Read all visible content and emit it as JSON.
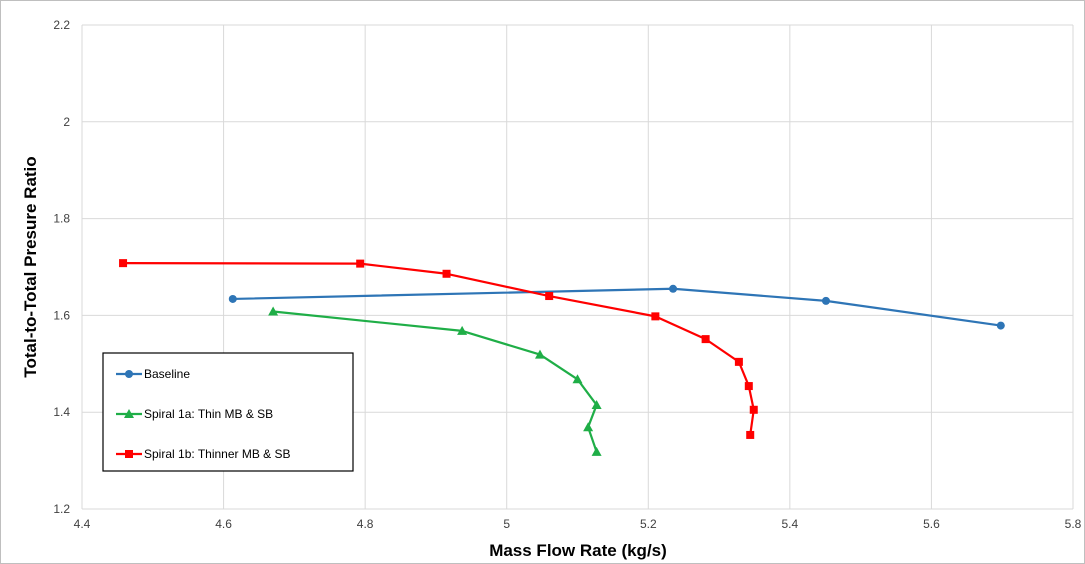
{
  "chart_data": {
    "type": "line",
    "title": "",
    "xlabel": "Mass Flow Rate (kg/s)",
    "ylabel": "Total-to-Total Presure Ratio",
    "xlim": [
      4.4,
      5.8
    ],
    "ylim": [
      1.2,
      2.2
    ],
    "x_ticks": [
      "4.4",
      "4.6",
      "4.8",
      "5",
      "5.2",
      "5.4",
      "5.6",
      "5.8"
    ],
    "y_ticks": [
      "1.2",
      "1.4",
      "1.6",
      "1.8",
      "2",
      "2.2"
    ],
    "grid": true,
    "legend_position": "bottom-left",
    "series": [
      {
        "name": "Baseline",
        "color": "#2e75b6",
        "marker": "circle",
        "points": [
          [
            4.613,
            1.634
          ],
          [
            5.235,
            1.655
          ],
          [
            5.451,
            1.63
          ],
          [
            5.698,
            1.579
          ]
        ]
      },
      {
        "name": "Spiral 1a: Thin MB & SB",
        "color": "#1fae47",
        "marker": "triangle",
        "points": [
          [
            4.67,
            1.608
          ],
          [
            4.937,
            1.568
          ],
          [
            5.047,
            1.519
          ],
          [
            5.1,
            1.468
          ],
          [
            5.127,
            1.415
          ],
          [
            5.115,
            1.369
          ],
          [
            5.127,
            1.318
          ]
        ]
      },
      {
        "name": "Spiral 1b: Thinner MB & SB",
        "color": "#ff0000",
        "marker": "square",
        "points": [
          [
            4.458,
            1.708
          ],
          [
            4.793,
            1.707
          ],
          [
            4.915,
            1.686
          ],
          [
            5.06,
            1.64
          ],
          [
            5.21,
            1.598
          ],
          [
            5.281,
            1.551
          ],
          [
            5.328,
            1.504
          ],
          [
            5.342,
            1.454
          ],
          [
            5.349,
            1.405
          ],
          [
            5.344,
            1.353
          ]
        ]
      }
    ]
  }
}
